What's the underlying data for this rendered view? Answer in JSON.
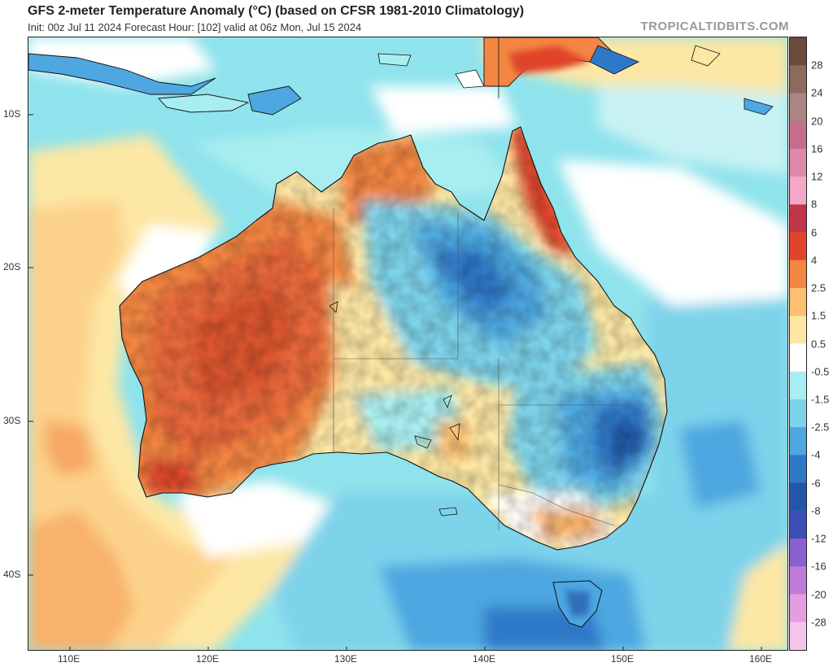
{
  "header": {
    "title": "GFS 2-meter Temperature Anomaly (°C) (based on CFSR 1981-2010 Climatology)",
    "subtitle": "Init: 00z Jul 11 2024   Forecast Hour: [102]   valid at 06z Mon, Jul 15 2024",
    "brand": "TROPICALTIDBITS.COM"
  },
  "map": {
    "lat_labels": [
      "10S",
      "20S",
      "30S",
      "40S"
    ],
    "lon_labels": [
      "110E",
      "120E",
      "130E",
      "140E",
      "150E",
      "160E"
    ],
    "extent": {
      "lon_min": 107,
      "lon_max": 162,
      "lat_top": 5,
      "lat_bottom": 45
    },
    "ocean_color": "#8fe3ec",
    "coast_color": "#111111"
  },
  "colorbar": {
    "labels": [
      "28",
      "24",
      "20",
      "16",
      "12",
      "8",
      "6",
      "4",
      "2.5",
      "1.5",
      "0.5",
      "-0.5",
      "-1.5",
      "-2.5",
      "-4",
      "-6",
      "-8",
      "-12",
      "-16",
      "-20",
      "-28"
    ],
    "colors": [
      "#6a4a3a",
      "#8c6a5c",
      "#a98583",
      "#c56d8d",
      "#de88ab",
      "#f2a9c8",
      "#c0374a",
      "#e0452c",
      "#f38642",
      "#fcc070",
      "#fde7a4",
      "#ffffff",
      "#a8eef0",
      "#7dd3ea",
      "#4ea7e0",
      "#2e78c8",
      "#2356a8",
      "#3c4fb8",
      "#8a5fd0",
      "#c07ad8",
      "#e69de0",
      "#f5c6ea"
    ]
  }
}
